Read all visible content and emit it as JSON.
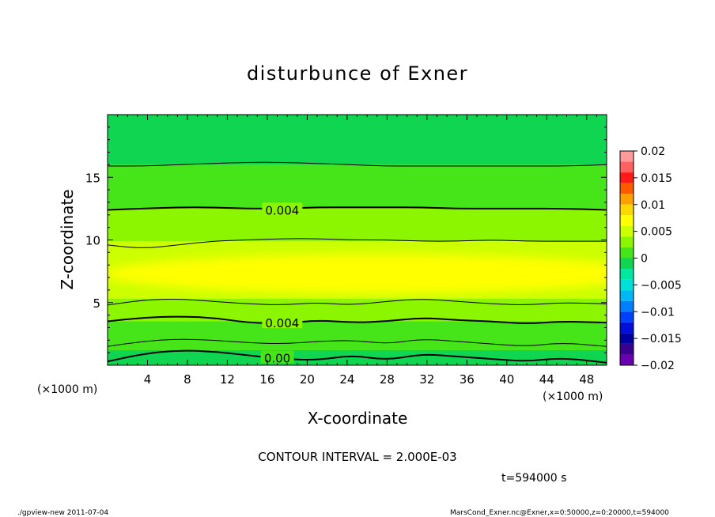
{
  "chart_data": {
    "type": "heatmap",
    "title": "disturbunce of Exner",
    "xlabel": "X-coordinate",
    "ylabel": "Z-coordinate",
    "x_unit_label": "(×1000 m)",
    "y_unit_label": "(×1000 m)",
    "xlim": [
      0,
      50
    ],
    "ylim": [
      0,
      20
    ],
    "x_ticks": [
      4,
      8,
      12,
      16,
      20,
      24,
      28,
      32,
      36,
      40,
      44,
      48
    ],
    "y_ticks": [
      5,
      10,
      15
    ],
    "colorbar": {
      "ticks": [
        0.02,
        0.015,
        0.01,
        0.005,
        0,
        -0.005,
        -0.01,
        -0.015,
        -0.02
      ],
      "tick_labels": [
        "0.02",
        "0.015",
        "0.01",
        "0.005",
        "0",
        "−0.005",
        "−0.01",
        "−0.015",
        "−0.02"
      ],
      "range": [
        -0.02,
        0.02
      ],
      "levels": [
        {
          "min": 0.018,
          "max": 0.02,
          "color": "#ff9a9a"
        },
        {
          "min": 0.016,
          "max": 0.018,
          "color": "#ff6060"
        },
        {
          "min": 0.014,
          "max": 0.016,
          "color": "#ff1a1a"
        },
        {
          "min": 0.012,
          "max": 0.014,
          "color": "#ff5a00"
        },
        {
          "min": 0.01,
          "max": 0.012,
          "color": "#ffa000"
        },
        {
          "min": 0.008,
          "max": 0.01,
          "color": "#ffd700"
        },
        {
          "min": 0.006,
          "max": 0.008,
          "color": "#ffff00"
        },
        {
          "min": 0.004,
          "max": 0.006,
          "color": "#ccff00"
        },
        {
          "min": 0.002,
          "max": 0.004,
          "color": "#8cf500"
        },
        {
          "min": 0.0,
          "max": 0.002,
          "color": "#45e51a"
        },
        {
          "min": -0.002,
          "max": 0.0,
          "color": "#10d550"
        },
        {
          "min": -0.004,
          "max": -0.002,
          "color": "#00e8a0"
        },
        {
          "min": -0.006,
          "max": -0.004,
          "color": "#00e0d8"
        },
        {
          "min": -0.008,
          "max": -0.006,
          "color": "#00b8f5"
        },
        {
          "min": -0.01,
          "max": -0.008,
          "color": "#0080ff"
        },
        {
          "min": -0.012,
          "max": -0.01,
          "color": "#0040ff"
        },
        {
          "min": -0.014,
          "max": -0.012,
          "color": "#0010d8"
        },
        {
          "min": -0.016,
          "max": -0.014,
          "color": "#0000a0"
        },
        {
          "min": -0.018,
          "max": -0.016,
          "color": "#3a0090"
        },
        {
          "min": -0.02,
          "max": -0.018,
          "color": "#6a00b0"
        }
      ]
    },
    "bands": [
      {
        "z_bottom": 0.0,
        "z_top": 1.2,
        "value_range": [
          -0.002,
          0.0
        ],
        "color": "#10d550"
      },
      {
        "z_bottom": 1.2,
        "z_top": 3.5,
        "value_range": [
          0.0,
          0.002
        ],
        "color": "#45e51a"
      },
      {
        "z_bottom": 3.5,
        "z_top": 5.3,
        "value_range": [
          0.002,
          0.004
        ],
        "color": "#8cf500"
      },
      {
        "z_bottom": 5.3,
        "z_top": 9.9,
        "value_range": [
          0.004,
          0.006
        ],
        "color": "#ccff00"
      },
      {
        "z_bottom": 9.9,
        "z_top": 12.5,
        "value_range": [
          0.002,
          0.004
        ],
        "color": "#8cf500"
      },
      {
        "z_bottom": 12.5,
        "z_top": 16.0,
        "value_range": [
          0.0,
          0.002
        ],
        "color": "#45e51a"
      },
      {
        "z_bottom": 16.0,
        "z_top": 20.0,
        "value_range": [
          -0.002,
          0.0
        ],
        "color": "#10d550"
      }
    ],
    "core_region": {
      "z_range": [
        6.0,
        8.6
      ],
      "value_range": [
        0.006,
        0.008
      ],
      "color": "#ffff00"
    },
    "contours": [
      {
        "value": 0.0,
        "z": [
          0.3,
          0.9,
          1.2,
          1.1,
          0.8,
          0.5,
          0.4,
          0.8,
          0.4,
          0.9,
          0.7,
          0.5,
          0.3,
          0.6,
          0.2
        ],
        "major": true
      },
      {
        "value": 0.002,
        "z": [
          1.5,
          1.9,
          2.1,
          2.0,
          1.8,
          1.7,
          1.9,
          2.0,
          1.7,
          2.1,
          1.9,
          1.7,
          1.5,
          1.8,
          1.5
        ],
        "major": false
      },
      {
        "value": 0.004,
        "z": [
          3.5,
          3.8,
          3.9,
          3.8,
          3.4,
          3.3,
          3.6,
          3.4,
          3.5,
          3.8,
          3.6,
          3.5,
          3.3,
          3.5,
          3.4
        ],
        "major": true
      },
      {
        "value": 0.006,
        "z": [
          4.8,
          5.2,
          5.3,
          5.1,
          4.9,
          4.8,
          5.0,
          4.8,
          5.1,
          5.3,
          5.1,
          4.9,
          4.8,
          5.0,
          4.9
        ],
        "major": false
      },
      {
        "value": 0.006,
        "z": [
          9.6,
          9.3,
          9.6,
          9.9,
          10.0,
          10.1,
          10.1,
          10.0,
          10.0,
          9.9,
          9.9,
          10.0,
          9.9,
          9.9,
          9.9
        ],
        "major": false
      },
      {
        "value": 0.004,
        "z": [
          12.4,
          12.5,
          12.6,
          12.6,
          12.5,
          12.5,
          12.6,
          12.6,
          12.6,
          12.6,
          12.5,
          12.5,
          12.5,
          12.5,
          12.4
        ],
        "major": true
      },
      {
        "value": 0.002,
        "z": [
          15.9,
          15.9,
          16.0,
          16.1,
          16.2,
          16.2,
          16.1,
          16.0,
          15.9,
          15.9,
          15.9,
          15.9,
          15.9,
          15.9,
          16.0
        ],
        "major": false
      }
    ],
    "contour_x": [
      0,
      3.5,
      7,
      10.5,
      14,
      17.5,
      21,
      24.5,
      28,
      31.5,
      35,
      38.5,
      42,
      45.5,
      50
    ],
    "contour_labels": [
      {
        "text": "0.004",
        "x": 17.5,
        "z": 12.4
      },
      {
        "text": "0.004",
        "x": 17.5,
        "z": 3.4
      },
      {
        "text": "0.00",
        "x": 17.0,
        "z": 0.6
      }
    ]
  },
  "footer": {
    "contour_interval": "CONTOUR INTERVAL = 2.000E-03",
    "time": "t=594000 s",
    "program": "./gpview-new  2011-07-04",
    "source": "MarsCond_Exner.nc@Exner,x=0:50000,z=0:20000,t=594000"
  }
}
